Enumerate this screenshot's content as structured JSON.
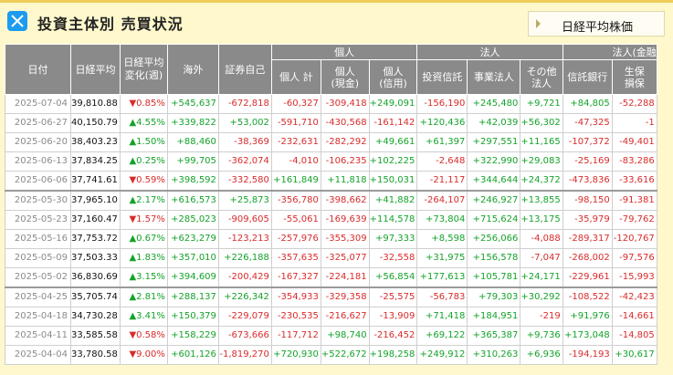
{
  "header": {
    "title": "投資主体別 売買状況",
    "tab_label": "日経平均株価"
  },
  "columns_row1": [
    "日付",
    "日経平均",
    "日経平均\n変化(週)",
    "海外",
    "証券自己",
    "個人",
    "法人",
    "法人(金融"
  ],
  "columns_row2": [
    "個人 計",
    "個人\n(現金)",
    "個人\n(信用)",
    "投資信託",
    "事業法人",
    "その他\n法人",
    "信託銀行",
    "生保\n損保"
  ],
  "rows": [
    {
      "date": "2025-07-04",
      "nikkei": "39,810.88",
      "change": "▼0.85%",
      "foreign": "+545,637",
      "sec": "-672,818",
      "ind_total": "-60,327",
      "ind_cash": "-309,418",
      "ind_margin": "+249,091",
      "inv_trust": "-156,190",
      "business": "+245,480",
      "other_corp": "+9,721",
      "trust_bank": "+84,805",
      "life_ins": "-52,288"
    },
    {
      "date": "2025-06-27",
      "nikkei": "40,150.79",
      "change": "▲4.55%",
      "foreign": "+339,822",
      "sec": "+53,002",
      "ind_total": "-591,710",
      "ind_cash": "-430,568",
      "ind_margin": "-161,142",
      "inv_trust": "+120,436",
      "business": "+42,039",
      "other_corp": "+56,302",
      "trust_bank": "-47,325",
      "life_ins": "-1"
    },
    {
      "date": "2025-06-20",
      "nikkei": "38,403.23",
      "change": "▲1.50%",
      "foreign": "+88,460",
      "sec": "-38,369",
      "ind_total": "-232,631",
      "ind_cash": "-282,292",
      "ind_margin": "+49,661",
      "inv_trust": "+61,397",
      "business": "+297,551",
      "other_corp": "+11,165",
      "trust_bank": "-107,372",
      "life_ins": "-49,401"
    },
    {
      "date": "2025-06-13",
      "nikkei": "37,834.25",
      "change": "▲0.25%",
      "foreign": "+99,705",
      "sec": "-362,074",
      "ind_total": "-4,010",
      "ind_cash": "-106,235",
      "ind_margin": "+102,225",
      "inv_trust": "-2,648",
      "business": "+322,990",
      "other_corp": "+29,083",
      "trust_bank": "-25,169",
      "life_ins": "-83,286"
    },
    {
      "date": "2025-06-06",
      "nikkei": "37,741.61",
      "change": "▼0.59%",
      "foreign": "+398,592",
      "sec": "-332,580",
      "ind_total": "+161,849",
      "ind_cash": "+11,818",
      "ind_margin": "+150,031",
      "inv_trust": "-21,117",
      "business": "+344,644",
      "other_corp": "+24,372",
      "trust_bank": "-473,836",
      "life_ins": "-33,616"
    },
    {
      "date": "2025-05-30",
      "nikkei": "37,965.10",
      "change": "▲2.17%",
      "foreign": "+616,573",
      "sec": "+25,873",
      "ind_total": "-356,780",
      "ind_cash": "-398,662",
      "ind_margin": "+41,882",
      "inv_trust": "-264,107",
      "business": "+246,927",
      "other_corp": "+13,855",
      "trust_bank": "-98,150",
      "life_ins": "-91,381"
    },
    {
      "date": "2025-05-23",
      "nikkei": "37,160.47",
      "change": "▼1.57%",
      "foreign": "+285,023",
      "sec": "-909,605",
      "ind_total": "-55,061",
      "ind_cash": "-169,639",
      "ind_margin": "+114,578",
      "inv_trust": "+73,804",
      "business": "+715,624",
      "other_corp": "+13,175",
      "trust_bank": "-35,979",
      "life_ins": "-79,762"
    },
    {
      "date": "2025-05-16",
      "nikkei": "37,753.72",
      "change": "▲0.67%",
      "foreign": "+623,279",
      "sec": "-123,213",
      "ind_total": "-257,976",
      "ind_cash": "-355,309",
      "ind_margin": "+97,333",
      "inv_trust": "+8,598",
      "business": "+256,066",
      "other_corp": "-4,088",
      "trust_bank": "-289,317",
      "life_ins": "-120,767"
    },
    {
      "date": "2025-05-09",
      "nikkei": "37,503.33",
      "change": "▲1.83%",
      "foreign": "+357,010",
      "sec": "+226,188",
      "ind_total": "-357,635",
      "ind_cash": "-325,077",
      "ind_margin": "-32,558",
      "inv_trust": "+31,975",
      "business": "+156,578",
      "other_corp": "-7,047",
      "trust_bank": "-268,002",
      "life_ins": "-97,576"
    },
    {
      "date": "2025-05-02",
      "nikkei": "36,830.69",
      "change": "▲3.15%",
      "foreign": "+394,609",
      "sec": "-200,429",
      "ind_total": "-167,327",
      "ind_cash": "-224,181",
      "ind_margin": "+56,854",
      "inv_trust": "+177,613",
      "business": "+105,781",
      "other_corp": "+24,171",
      "trust_bank": "-229,961",
      "life_ins": "-15,993"
    },
    {
      "date": "2025-04-25",
      "nikkei": "35,705.74",
      "change": "▲2.81%",
      "foreign": "+288,137",
      "sec": "+226,342",
      "ind_total": "-354,933",
      "ind_cash": "-329,358",
      "ind_margin": "-25,575",
      "inv_trust": "-56,783",
      "business": "+79,303",
      "other_corp": "+30,292",
      "trust_bank": "-108,522",
      "life_ins": "-42,423"
    },
    {
      "date": "2025-04-18",
      "nikkei": "34,730.28",
      "change": "▲3.41%",
      "foreign": "+150,379",
      "sec": "-229,079",
      "ind_total": "-230,535",
      "ind_cash": "-216,627",
      "ind_margin": "-13,909",
      "inv_trust": "+71,418",
      "business": "+184,951",
      "other_corp": "-219",
      "trust_bank": "+91,976",
      "life_ins": "-14,661"
    },
    {
      "date": "2025-04-11",
      "nikkei": "33,585.58",
      "change": "▼0.58%",
      "foreign": "+158,229",
      "sec": "-673,666",
      "ind_total": "-117,712",
      "ind_cash": "+98,740",
      "ind_margin": "-216,452",
      "inv_trust": "+69,122",
      "business": "+365,387",
      "other_corp": "+9,736",
      "trust_bank": "+173,048",
      "life_ins": "-14,805"
    },
    {
      "date": "2025-04-04",
      "nikkei": "33,780.58",
      "change": "▼9.00%",
      "foreign": "+601,126",
      "sec": "-1,819,270",
      "ind_total": "+720,930",
      "ind_cash": "+522,672",
      "ind_margin": "+198,258",
      "inv_trust": "+249,912",
      "business": "+310,263",
      "other_corp": "+6,936",
      "trust_bank": "-194,193",
      "life_ins": "+30,617"
    }
  ],
  "colors": {
    "positive": "#14a32a",
    "negative": "#d92b2b",
    "header_bg": "#8a8a8a",
    "panel_bg": "#fff8cc",
    "accent": "#f1cc5a"
  }
}
